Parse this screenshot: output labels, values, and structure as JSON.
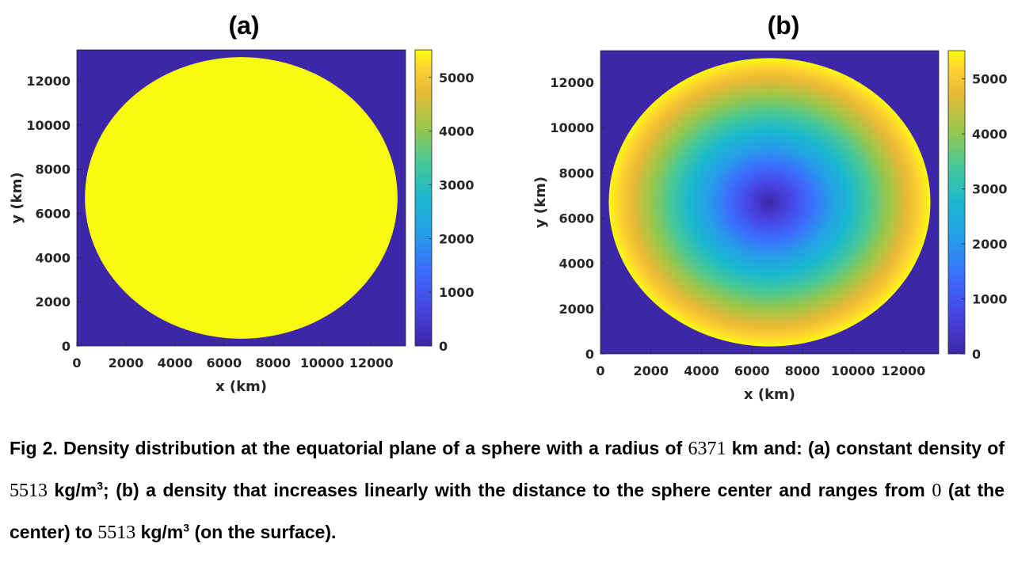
{
  "chart_data": [
    {
      "panel": "(a)",
      "type": "heatmap",
      "title": "(a)",
      "xlabel": "x (km)",
      "ylabel": "y (km)",
      "xlim": [
        0,
        13400
      ],
      "ylim": [
        0,
        13400
      ],
      "xticks": [
        "0",
        "2000",
        "4000",
        "6000",
        "8000",
        "10000",
        "12000"
      ],
      "yticks": [
        "0",
        "2000",
        "4000",
        "6000",
        "8000",
        "10000",
        "12000"
      ],
      "disk_center_km": [
        6700,
        6700
      ],
      "disk_radius_km": 6371,
      "density_profile": "constant",
      "surface_density": 5513,
      "background_density": 0,
      "colorbar": {
        "ticks": [
          "0",
          "1000",
          "2000",
          "3000",
          "4000",
          "5000"
        ],
        "range": [
          0,
          5513
        ],
        "colormap": "parula"
      }
    },
    {
      "panel": "(b)",
      "type": "heatmap",
      "title": "(b)",
      "xlabel": "x (km)",
      "ylabel": "y (km)",
      "xlim": [
        0,
        13400
      ],
      "ylim": [
        0,
        13400
      ],
      "xticks": [
        "0",
        "2000",
        "4000",
        "6000",
        "8000",
        "10000",
        "12000"
      ],
      "yticks": [
        "0",
        "2000",
        "4000",
        "6000",
        "8000",
        "10000",
        "12000"
      ],
      "disk_center_km": [
        6700,
        6700
      ],
      "disk_radius_km": 6371,
      "density_profile": "linear_increasing_with_radius",
      "center_density": 0,
      "surface_density": 5513,
      "background_density": 0,
      "colorbar": {
        "ticks": [
          "0",
          "1000",
          "2000",
          "3000",
          "4000",
          "5000"
        ],
        "range": [
          0,
          5513
        ],
        "colormap": "parula"
      }
    }
  ],
  "caption": {
    "part1": "Fig 2. Density distribution at the equatorial plane of a sphere with a radius of ",
    "radius": "6371",
    "part2": " km and: (a) constant density of ",
    "density_a": "5513",
    "part3": " kg/m",
    "sup1": "3",
    "part4": "; (b) a density that increases linearly with the distance to the sphere center and ranges from ",
    "zero": "0",
    "part5": " (at the center) to ",
    "density_b": "5513",
    "part6": " kg/m",
    "sup2": "3",
    "part7": " (on the surface)."
  }
}
